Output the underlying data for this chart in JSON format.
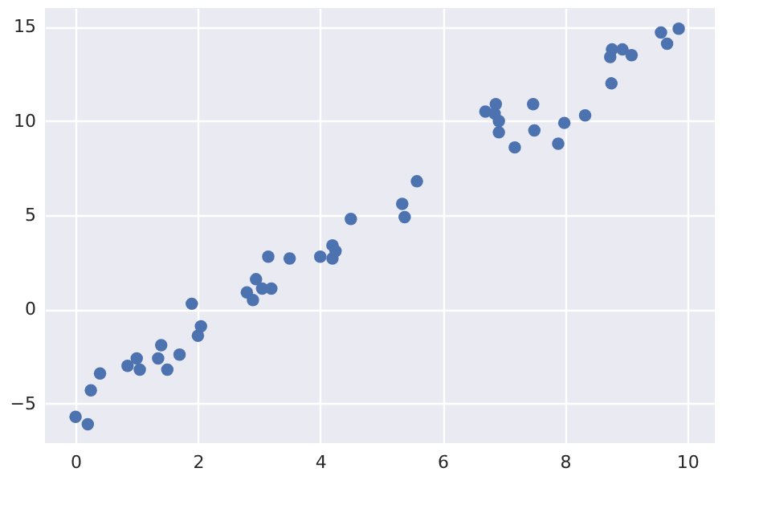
{
  "chart_data": {
    "type": "scatter",
    "marker": "circle",
    "grid": true,
    "xlim": [
      -0.5,
      10.45
    ],
    "ylim": [
      -7.1,
      16.0
    ],
    "xticks": [
      0,
      2,
      4,
      6,
      8,
      10
    ],
    "yticks": [
      -5,
      0,
      5,
      10,
      15
    ],
    "x": [
      0,
      0.2,
      0.25,
      0.4,
      0.85,
      1.0,
      1.05,
      1.35,
      1.4,
      1.5,
      1.7,
      1.9,
      2.0,
      2.05,
      2.8,
      2.9,
      2.95,
      3.05,
      3.2,
      3.15,
      3.5,
      4.0,
      4.2,
      4.25,
      4.2,
      4.5,
      5.34,
      5.38,
      5.58,
      6.7,
      6.87,
      6.85,
      6.92,
      6.92,
      7.18,
      7.48,
      7.5,
      7.89,
      7.99,
      8.33,
      8.76,
      8.74,
      8.77,
      8.94,
      9.09,
      9.57,
      9.67,
      9.86
    ],
    "series": [
      {
        "color": "#4c72b0",
        "values": [
          -5.7,
          -6.1,
          -4.3,
          -3.4,
          -3.0,
          -2.6,
          -3.2,
          -2.6,
          -1.9,
          -3.2,
          -2.4,
          0.3,
          -1.4,
          -0.9,
          0.9,
          0.5,
          1.6,
          1.1,
          1.1,
          2.8,
          2.7,
          2.8,
          3.4,
          3.1,
          2.7,
          4.8,
          5.6,
          4.9,
          6.8,
          10.5,
          10.9,
          10.4,
          10.0,
          9.4,
          8.6,
          10.9,
          9.5,
          8.8,
          9.9,
          10.3,
          12.0,
          13.4,
          13.8,
          13.8,
          13.5,
          14.7,
          14.1,
          14.9
        ]
      }
    ]
  }
}
